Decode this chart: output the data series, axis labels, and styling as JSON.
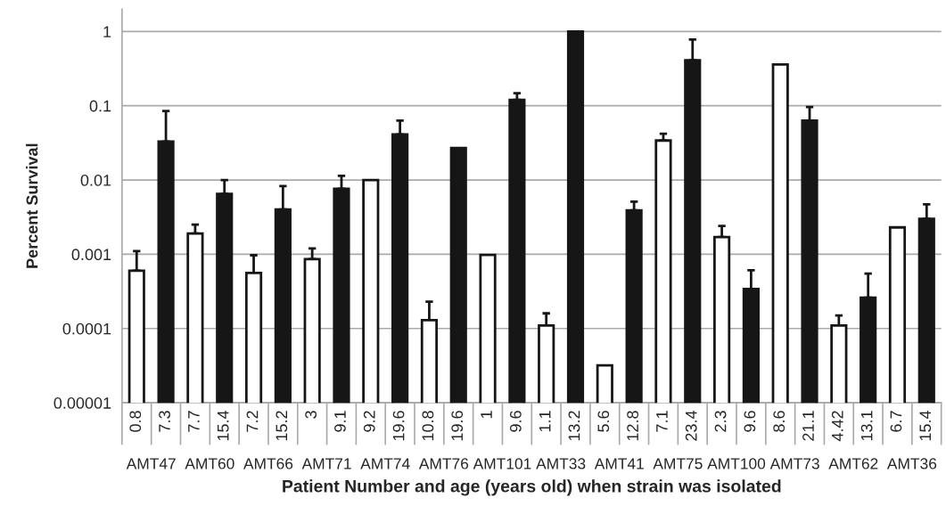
{
  "chart_data": {
    "type": "bar",
    "xlabel": "Patient Number and age (years old) when strain was isolated",
    "ylabel": "Percent Survival",
    "categories": [
      "0.8",
      "7.3",
      "7.7",
      "15.4",
      "7.2",
      "15.2",
      "3",
      "9.1",
      "9.2",
      "19.6",
      "10.8",
      "19.6",
      "1",
      "9.6",
      "1.1",
      "13.2",
      "5.6",
      "12.8",
      "7.1",
      "23.4",
      "2.3",
      "9.6",
      "8.6",
      "21.1",
      "4.42",
      "13.1",
      "6.7",
      "15.4"
    ],
    "values": [
      0.0006,
      0.033,
      0.0019,
      0.0065,
      0.00056,
      0.004,
      0.00086,
      0.0076,
      0.01,
      0.041,
      0.00013,
      0.027,
      0.00098,
      0.12,
      0.00011,
      1,
      3.2e-05,
      0.0039,
      0.034,
      0.41,
      0.0017,
      0.00034,
      0.36,
      0.063,
      0.00011,
      0.00026,
      0.0023,
      0.003
    ],
    "errors": [
      [
        0.0006,
        0.0011
      ],
      [
        0.033,
        0.085
      ],
      [
        0.0019,
        0.0025
      ],
      [
        0.0065,
        0.01
      ],
      [
        0.00056,
        0.00097
      ],
      [
        0.004,
        0.0083
      ],
      [
        0.00086,
        0.0012
      ],
      [
        0.0076,
        0.0114
      ],
      null,
      [
        0.041,
        0.063
      ],
      [
        0.00013,
        0.00023
      ],
      null,
      null,
      [
        0.12,
        0.147
      ],
      [
        0.00011,
        0.00016
      ],
      null,
      null,
      [
        0.0039,
        0.0051
      ],
      [
        0.034,
        0.042
      ],
      [
        0.41,
        0.78
      ],
      [
        0.0017,
        0.0024
      ],
      [
        0.00034,
        0.00061
      ],
      null,
      [
        0.063,
        0.096
      ],
      [
        0.00011,
        0.00015
      ],
      [
        0.00026,
        0.00055
      ],
      null,
      [
        0.003,
        0.0047
      ]
    ],
    "colors": [
      "#ffffff",
      "#161616",
      "#ffffff",
      "#161616",
      "#ffffff",
      "#161616",
      "#ffffff",
      "#161616",
      "#ffffff",
      "#161616",
      "#ffffff",
      "#161616",
      "#ffffff",
      "#161616",
      "#ffffff",
      "#161616",
      "#ffffff",
      "#161616",
      "#ffffff",
      "#161616",
      "#ffffff",
      "#161616",
      "#ffffff",
      "#161616",
      "#ffffff",
      "#161616",
      "#ffffff",
      "#161616"
    ],
    "annotations": [
      "AMT47",
      "AMT60",
      "AMT66",
      "AMT71",
      "AMT74",
      "AMT76",
      "AMT101",
      "AMT33",
      "AMT41",
      "AMT75",
      "AMT100",
      "AMT73",
      "AMT62",
      "AMT36"
    ],
    "log": true,
    "ylim": [
      1e-05,
      2
    ],
    "yticks": [
      {
        "value": 1e-05,
        "label": "0.00001"
      },
      0.0001,
      0.001,
      0.01,
      0.1,
      1
    ],
    "grid": "y",
    "legend": false
  }
}
